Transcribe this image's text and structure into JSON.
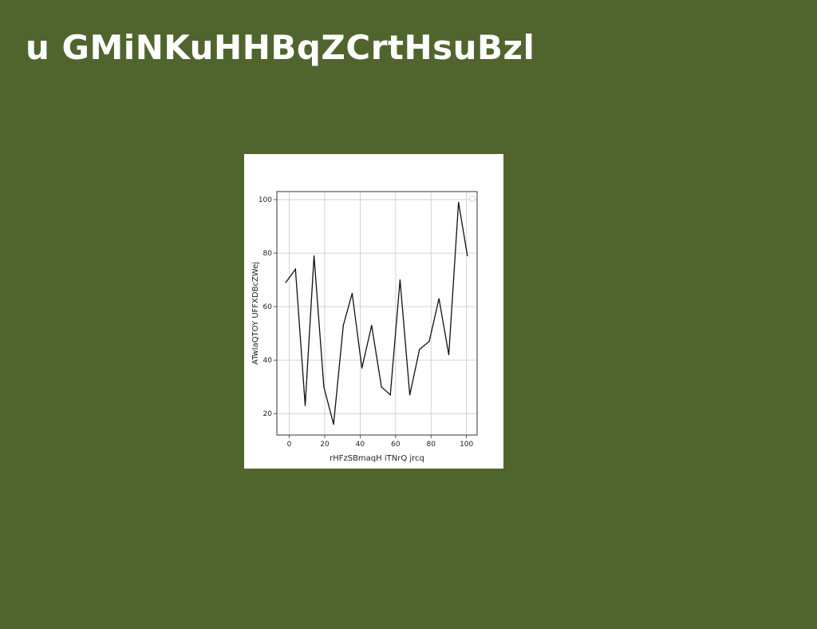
{
  "slide": {
    "title": "u GMiNKuHHBqZCrtHsuBzl",
    "background_color": "#50652d"
  },
  "chart_data": {
    "type": "line",
    "title": "",
    "xlabel": "rHFzSBmaqH iTNrQ jrcq",
    "ylabel": "ATwlaQTOY UFFXDBcZWej",
    "xlim": [
      -7,
      106
    ],
    "ylim": [
      12,
      103
    ],
    "xticks": [
      0,
      20,
      40,
      60,
      80,
      100
    ],
    "yticks": [
      20,
      40,
      60,
      80,
      100
    ],
    "grid": true,
    "legend": "top-right (empty)",
    "line_color": "#111111",
    "series": [
      {
        "x": [
          -2,
          3.5,
          9,
          14,
          19.5,
          25,
          30.5,
          35.5,
          41,
          46.5,
          52,
          57,
          62.5,
          68,
          73.5,
          79,
          84.5,
          90,
          95.5,
          100.5
        ],
        "values": [
          69,
          74,
          23,
          79,
          30,
          16,
          53,
          65,
          37,
          53,
          30,
          27,
          70,
          27,
          44,
          47,
          63,
          42,
          99,
          79
        ]
      }
    ]
  }
}
